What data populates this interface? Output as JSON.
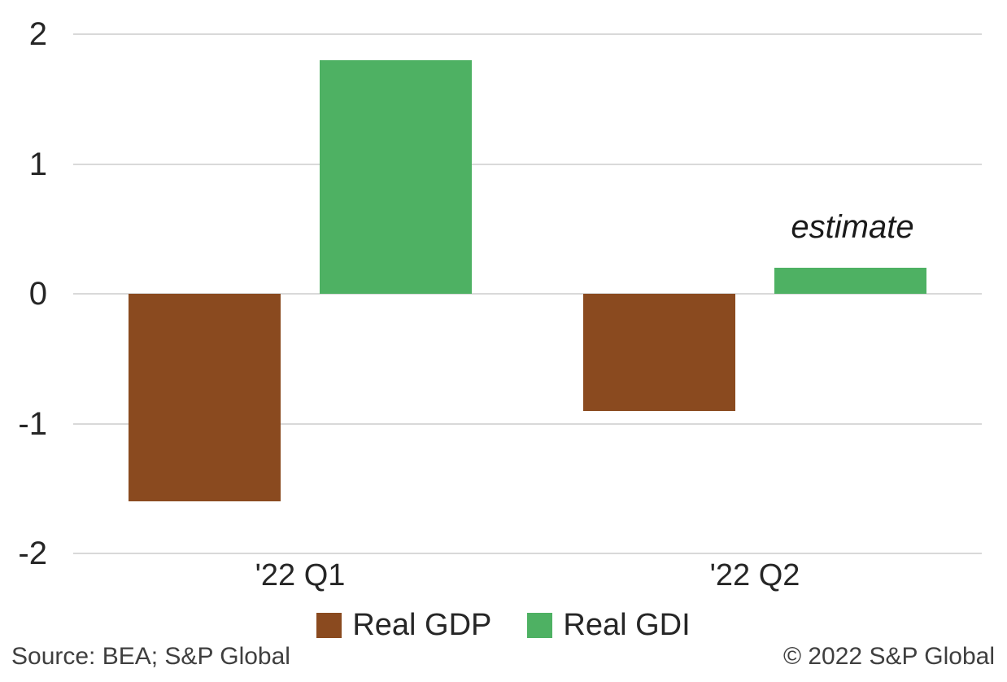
{
  "chart_data": {
    "type": "bar",
    "title": "",
    "categories": [
      "'22 Q1",
      "'22 Q2"
    ],
    "series": [
      {
        "name": "Real GDP",
        "color": "#8a4a1f",
        "values": [
          -1.6,
          -0.9
        ]
      },
      {
        "name": "Real GDI",
        "color": "#4eb163",
        "values": [
          1.8,
          0.2
        ]
      }
    ],
    "ylim": [
      -2,
      2
    ],
    "yticks": [
      2,
      1,
      0,
      -1,
      -2
    ],
    "grid": true,
    "legend_position": "bottom",
    "annotations": [
      {
        "text": "estimate",
        "category_index": 1,
        "series_index": 1,
        "style": "italic"
      }
    ]
  },
  "footer": {
    "source": "Source: BEA; S&P Global",
    "copyright": "© 2022 S&P Global"
  },
  "colors": {
    "gridline": "#d9d9d9",
    "axis_text": "#262626",
    "footer_text": "#3f3f3f"
  }
}
